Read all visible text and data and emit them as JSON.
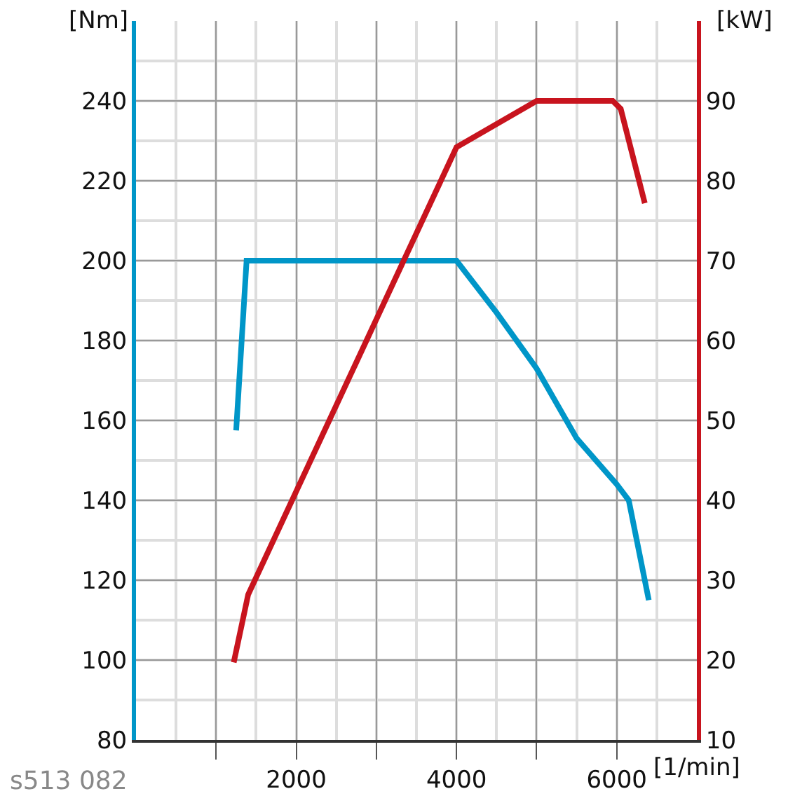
{
  "chart_data": {
    "type": "line",
    "xlabel": "[1/min]",
    "ylabel": "[Nm]",
    "y2label": "[kW]",
    "annotations": [
      "s513 082"
    ],
    "xlim": [
      0,
      7000
    ],
    "xticks": [
      {
        "value": 1000,
        "label": null
      },
      2000,
      {
        "value": 3000,
        "label": null
      },
      4000,
      {
        "value": 5000,
        "label": null
      },
      6000
    ],
    "ylim": [
      80,
      260
    ],
    "yticks": [
      80,
      100,
      120,
      140,
      160,
      180,
      200,
      220,
      240
    ],
    "y2lim": [
      10,
      100
    ],
    "y2ticks": [
      10,
      20,
      30,
      40,
      50,
      60,
      70,
      80,
      90
    ],
    "grid": true,
    "marker": "none",
    "line_style": "solid",
    "series": [
      {
        "color": "#0096c8",
        "x": [
          1250,
          1380,
          4000,
          4500,
          5000,
          5500,
          6000,
          6150,
          6400
        ],
        "values": [
          157.5,
          200,
          200,
          187,
          173,
          155.5,
          144,
          140,
          115
        ]
      },
      {
        "color": "#c8141e",
        "axis": "y2",
        "x": [
          1220,
          1400,
          4000,
          5000,
          5950,
          6050,
          6350
        ],
        "values": [
          19.7,
          28.2,
          84.2,
          90,
          90,
          89,
          77.2
        ]
      }
    ]
  }
}
